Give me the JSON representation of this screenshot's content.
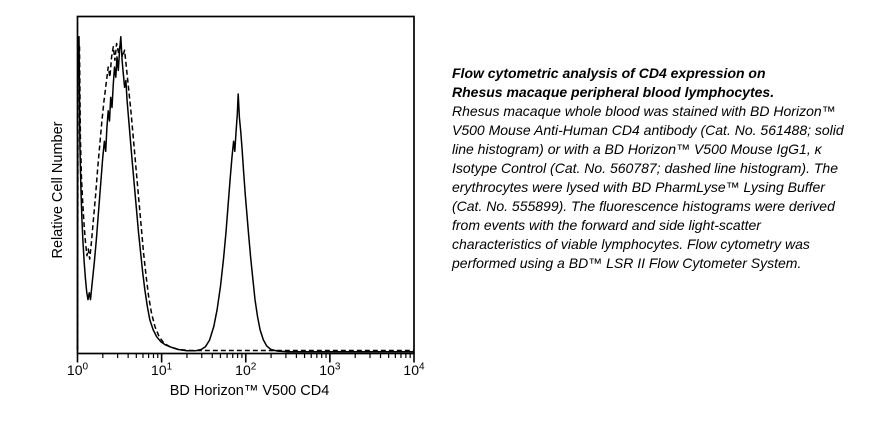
{
  "caption": {
    "title_lines": [
      "Flow cytometric analysis of CD4 expression on",
      "Rhesus macaque peripheral blood lymphocytes."
    ],
    "body": "Rhesus macaque whole blood was stained with BD Horizon™ V500 Mouse Anti-Human CD4 antibody (Cat. No. 561488; solid line histogram) or with a BD Horizon™ V500 Mouse IgG1, κ Isotype Control (Cat. No. 560787; dashed line histogram). The erythrocytes were lysed with BD PharmLyse™ Lysing Buffer (Cat. No. 555899). The fluorescence histograms were derived from events with the forward and side light-scatter characteristics of viable lymphocytes. Flow cytometry was performed using a BD™ LSR II Flow Cytometer System."
  },
  "chart_data": {
    "type": "line",
    "subtype": "flow-cytometry-overlay-histogram",
    "title": "",
    "xlabel": "BD Horizon™ V500 CD4",
    "ylabel": "Relative Cell Number",
    "x_scale": "log10",
    "xlim": [
      1,
      10000
    ],
    "x_ticks": [
      {
        "base": "10",
        "exp": "0",
        "value": 1
      },
      {
        "base": "10",
        "exp": "1",
        "value": 10
      },
      {
        "base": "10",
        "exp": "2",
        "value": 100
      },
      {
        "base": "10",
        "exp": "3",
        "value": 1000
      },
      {
        "base": "10",
        "exp": "4",
        "value": 10000
      }
    ],
    "y_axis": "relative scale, no ticks or numeric labels",
    "ylim_percent": [
      0,
      100
    ],
    "grid": false,
    "legend_position": "none (line styles identified in caption)",
    "line_color": "#000000",
    "background": "#ffffff",
    "series": [
      {
        "name": "BD Horizon™ V500 Mouse Anti-Human CD4 (Cat. No. 561488), solid line histogram",
        "line_style": "solid",
        "peaks": [
          {
            "x": 1,
            "y_pct": 94
          },
          {
            "x": 3.3,
            "y_pct": 94
          },
          {
            "x": 81,
            "y_pct": 77
          }
        ],
        "points_log10x_ypct": [
          [
            0.0,
            1
          ],
          [
            0.004,
            94
          ],
          [
            0.018,
            94
          ],
          [
            0.028,
            62
          ],
          [
            0.04,
            49
          ],
          [
            0.052,
            40
          ],
          [
            0.065,
            33
          ],
          [
            0.08,
            27
          ],
          [
            0.095,
            22
          ],
          [
            0.11,
            18
          ],
          [
            0.125,
            16
          ],
          [
            0.14,
            18
          ],
          [
            0.155,
            16
          ],
          [
            0.175,
            21
          ],
          [
            0.2,
            27
          ],
          [
            0.225,
            34
          ],
          [
            0.25,
            42
          ],
          [
            0.275,
            50
          ],
          [
            0.3,
            58
          ],
          [
            0.32,
            63
          ],
          [
            0.335,
            60
          ],
          [
            0.35,
            67
          ],
          [
            0.365,
            72
          ],
          [
            0.38,
            69
          ],
          [
            0.395,
            76
          ],
          [
            0.41,
            73
          ],
          [
            0.425,
            80
          ],
          [
            0.44,
            85
          ],
          [
            0.455,
            82
          ],
          [
            0.47,
            88
          ],
          [
            0.485,
            84
          ],
          [
            0.5,
            90
          ],
          [
            0.515,
            94
          ],
          [
            0.53,
            87
          ],
          [
            0.545,
            83
          ],
          [
            0.56,
            79
          ],
          [
            0.575,
            81
          ],
          [
            0.59,
            75
          ],
          [
            0.61,
            69
          ],
          [
            0.63,
            63
          ],
          [
            0.65,
            57
          ],
          [
            0.675,
            50
          ],
          [
            0.7,
            43
          ],
          [
            0.725,
            36
          ],
          [
            0.75,
            30
          ],
          [
            0.775,
            24
          ],
          [
            0.8,
            19
          ],
          [
            0.83,
            14
          ],
          [
            0.86,
            10
          ],
          [
            0.9,
            7
          ],
          [
            0.94,
            5
          ],
          [
            0.99,
            3.5
          ],
          [
            1.05,
            2.5
          ],
          [
            1.12,
            1.8
          ],
          [
            1.2,
            1.2
          ],
          [
            1.3,
            0.8
          ],
          [
            1.4,
            0.8
          ],
          [
            1.47,
            1.2
          ],
          [
            1.52,
            2
          ],
          [
            1.57,
            4
          ],
          [
            1.62,
            8
          ],
          [
            1.66,
            13
          ],
          [
            1.7,
            20
          ],
          [
            1.735,
            28
          ],
          [
            1.765,
            36
          ],
          [
            1.79,
            44
          ],
          [
            1.815,
            52
          ],
          [
            1.835,
            58
          ],
          [
            1.855,
            63
          ],
          [
            1.87,
            60
          ],
          [
            1.885,
            66
          ],
          [
            1.9,
            71
          ],
          [
            1.91,
            77
          ],
          [
            1.925,
            70
          ],
          [
            1.94,
            66
          ],
          [
            1.955,
            61
          ],
          [
            1.975,
            54
          ],
          [
            1.995,
            47
          ],
          [
            2.015,
            41
          ],
          [
            2.035,
            35
          ],
          [
            2.06,
            28
          ],
          [
            2.085,
            22
          ],
          [
            2.11,
            16
          ],
          [
            2.14,
            11
          ],
          [
            2.17,
            7
          ],
          [
            2.21,
            4
          ],
          [
            2.25,
            2.2
          ],
          [
            2.3,
            1.2
          ],
          [
            2.38,
            0.7
          ],
          [
            2.5,
            0.5
          ],
          [
            2.8,
            0.5
          ],
          [
            3.2,
            0.5
          ],
          [
            3.6,
            0.5
          ],
          [
            4.0,
            0.5
          ]
        ]
      },
      {
        "name": "BD Horizon™ V500 Mouse IgG1, κ Isotype Control (Cat. No. 560787), dashed line histogram",
        "line_style": "dashed",
        "peaks": [
          {
            "x": 1,
            "y_pct": 91
          },
          {
            "x": 3.1,
            "y_pct": 92
          }
        ],
        "points_log10x_ypct": [
          [
            0.0,
            1
          ],
          [
            0.008,
            91
          ],
          [
            0.024,
            91
          ],
          [
            0.034,
            64
          ],
          [
            0.048,
            52
          ],
          [
            0.062,
            45
          ],
          [
            0.078,
            38
          ],
          [
            0.095,
            33
          ],
          [
            0.112,
            29
          ],
          [
            0.128,
            31
          ],
          [
            0.145,
            28
          ],
          [
            0.165,
            33
          ],
          [
            0.19,
            40
          ],
          [
            0.215,
            47
          ],
          [
            0.24,
            55
          ],
          [
            0.265,
            62
          ],
          [
            0.29,
            69
          ],
          [
            0.315,
            75
          ],
          [
            0.34,
            80
          ],
          [
            0.365,
            85
          ],
          [
            0.385,
            82
          ],
          [
            0.405,
            88
          ],
          [
            0.425,
            91
          ],
          [
            0.445,
            87
          ],
          [
            0.465,
            92
          ],
          [
            0.49,
            89
          ],
          [
            0.51,
            92
          ],
          [
            0.535,
            88
          ],
          [
            0.56,
            90
          ],
          [
            0.585,
            84
          ],
          [
            0.61,
            78
          ],
          [
            0.635,
            72
          ],
          [
            0.66,
            65
          ],
          [
            0.685,
            58
          ],
          [
            0.71,
            51
          ],
          [
            0.735,
            44
          ],
          [
            0.76,
            37
          ],
          [
            0.785,
            30
          ],
          [
            0.815,
            23
          ],
          [
            0.845,
            17
          ],
          [
            0.88,
            12
          ],
          [
            0.92,
            8
          ],
          [
            0.97,
            5
          ],
          [
            1.03,
            3
          ],
          [
            1.1,
            2
          ],
          [
            1.2,
            1.2
          ],
          [
            1.35,
            0.9
          ],
          [
            1.6,
            0.9
          ],
          [
            1.9,
            0.9
          ],
          [
            2.2,
            0.9
          ],
          [
            2.6,
            0.9
          ],
          [
            3.0,
            0.9
          ],
          [
            3.4,
            0.9
          ],
          [
            3.7,
            0.9
          ],
          [
            4.0,
            0.9
          ]
        ]
      }
    ]
  }
}
